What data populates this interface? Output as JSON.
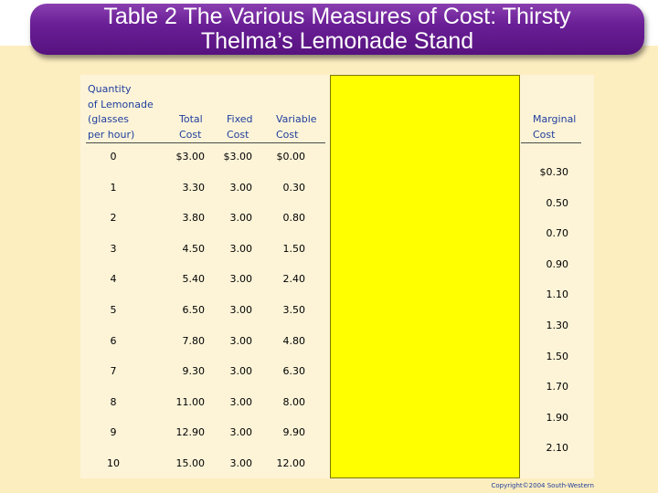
{
  "title": {
    "line1": "Table 2 The Various Measures of Cost: Thirsty",
    "line2": "Thelma’s Lemonade Stand"
  },
  "table": {
    "headers": {
      "quantity": [
        "Quantity",
        "of Lemonade",
        "(glasses",
        "per hour)"
      ],
      "total": [
        "Total",
        "Cost"
      ],
      "fixed": [
        "Fixed",
        "Cost"
      ],
      "variable": [
        "Variable",
        "Cost"
      ],
      "marginal": [
        "Marginal",
        "Cost"
      ]
    },
    "rows": [
      {
        "q": "0",
        "total": "$3.00",
        "fixed": "$3.00",
        "variable": "$0.00"
      },
      {
        "q": "1",
        "total": "3.30",
        "fixed": "3.00",
        "variable": "0.30"
      },
      {
        "q": "2",
        "total": "3.80",
        "fixed": "3.00",
        "variable": "0.80"
      },
      {
        "q": "3",
        "total": "4.50",
        "fixed": "3.00",
        "variable": "1.50"
      },
      {
        "q": "4",
        "total": "5.40",
        "fixed": "3.00",
        "variable": "2.40"
      },
      {
        "q": "5",
        "total": "6.50",
        "fixed": "3.00",
        "variable": "3.50"
      },
      {
        "q": "6",
        "total": "7.80",
        "fixed": "3.00",
        "variable": "4.80"
      },
      {
        "q": "7",
        "total": "9.30",
        "fixed": "3.00",
        "variable": "6.30"
      },
      {
        "q": "8",
        "total": "11.00",
        "fixed": "3.00",
        "variable": "8.00"
      },
      {
        "q": "9",
        "total": "12.90",
        "fixed": "3.00",
        "variable": "9.90"
      },
      {
        "q": "10",
        "total": "15.00",
        "fixed": "3.00",
        "variable": "12.00"
      }
    ],
    "marginal": [
      "$0.30",
      "0.50",
      "0.70",
      "0.90",
      "1.10",
      "1.30",
      "1.50",
      "1.70",
      "1.90",
      "2.10"
    ]
  },
  "copyright": "Copyright©2004  South-Western",
  "colors": {
    "banner": "#6a1f96",
    "header_text": "#1f3e9c",
    "highlight": "#ffff00",
    "background": "#fdeec0"
  }
}
